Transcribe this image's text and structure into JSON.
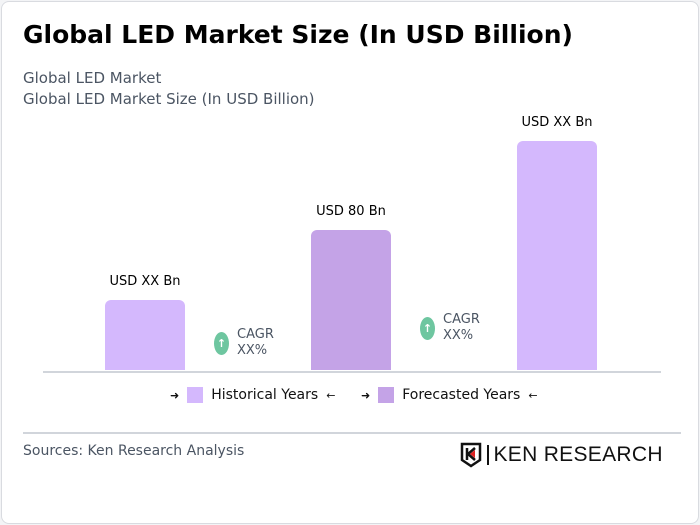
{
  "title": "Global LED Market Size (In USD Billion)",
  "subtitle1": "Global LED Market",
  "subtitle2": "Global LED Market Size (In USD Billion)",
  "chart_data": {
    "type": "bar",
    "title": "Global LED Market Size (In USD Billion)",
    "categories": [
      "",
      "",
      ""
    ],
    "values": [
      40,
      80,
      131
    ],
    "data_labels": [
      "USD XX Bn",
      "USD 80 Bn",
      "USD XX Bn"
    ],
    "series_type": [
      "Historical Years",
      "Forecasted Years",
      "Historical Years"
    ],
    "colors": {
      "Historical Years": "#d4b8fd",
      "Forecasted Years": "#c4a3e7"
    },
    "annotations": [
      {
        "label": "CAGR",
        "value": "XX%"
      },
      {
        "label": "CAGR",
        "value": "XX%"
      }
    ],
    "legend": [
      "Historical Years",
      "Forecasted Years"
    ],
    "legend_position": "bottom",
    "grid": false
  },
  "source": "Sources: Ken Research Analysis",
  "logo": "KEN RESEARCH"
}
